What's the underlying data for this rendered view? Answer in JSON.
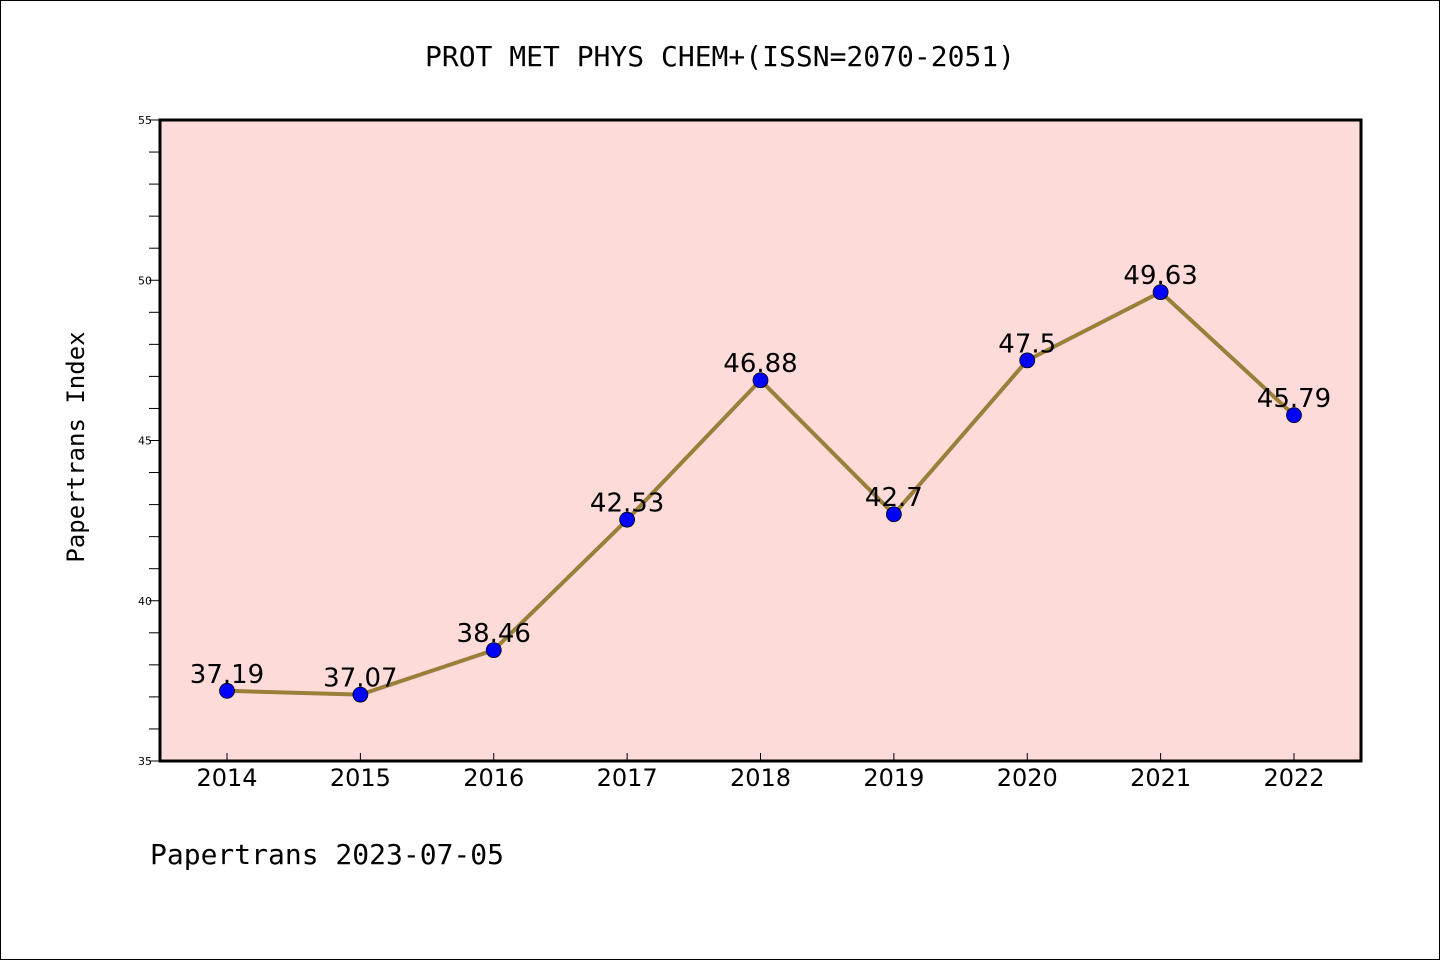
{
  "chart_data": {
    "type": "line",
    "title": "PROT MET PHYS CHEM+(ISSN=2070-2051)",
    "xlabel": "",
    "ylabel": "Papertrans Index",
    "footer": "Papertrans 2023-07-05",
    "categories": [
      "2014",
      "2015",
      "2016",
      "2017",
      "2018",
      "2019",
      "2020",
      "2021",
      "2022"
    ],
    "series": [
      {
        "values": [
          37.19,
          37.07,
          38.46,
          42.53,
          46.88,
          42.7,
          47.5,
          49.63,
          45.79
        ],
        "labels": [
          "37.19",
          "37.07",
          "38.46",
          "42.53",
          "46.88",
          "42.7",
          "47.5",
          "49.63",
          "45.79"
        ]
      }
    ],
    "ylim": [
      35,
      55
    ],
    "yticks": [
      "35",
      "40",
      "45",
      "50",
      "55"
    ],
    "grid": false,
    "colors": {
      "plot_background": "#fddbd8",
      "line": "#9a7f3a",
      "marker": "#0000ff"
    }
  }
}
